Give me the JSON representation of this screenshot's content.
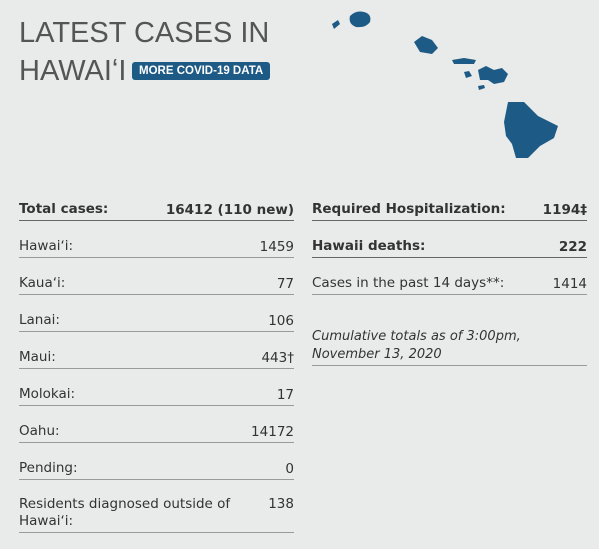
{
  "header": {
    "title": "LATEST CASES IN HAWAIʻI",
    "button": "MORE COVID-19 DATA"
  },
  "left_rows": [
    {
      "label": "Total cases:",
      "value": "16412 (110 new)"
    },
    {
      "label": "Hawaiʻi:",
      "value": 1459
    },
    {
      "label": "Kauaʻi:",
      "value": 77
    },
    {
      "label": "Lanai:",
      "value": 106
    },
    {
      "label": "Maui:",
      "value": "443†"
    },
    {
      "label": "Molokai:",
      "value": 17
    },
    {
      "label": "Oahu:",
      "value": 14172
    },
    {
      "label": "Pending:",
      "value": 0
    },
    {
      "label": "Residents diagnosed outside of Hawaiʻi:",
      "value": 138
    }
  ],
  "right_rows": [
    {
      "label": "Required Hospitalization:",
      "value": "1194‡"
    },
    {
      "label": "Hawaii deaths:",
      "value": 222
    },
    {
      "label": "Cases in the past 14 days**:",
      "value": 1414
    }
  ],
  "note": "Cumulative totals as of 3:00pm, November 13, 2020"
}
